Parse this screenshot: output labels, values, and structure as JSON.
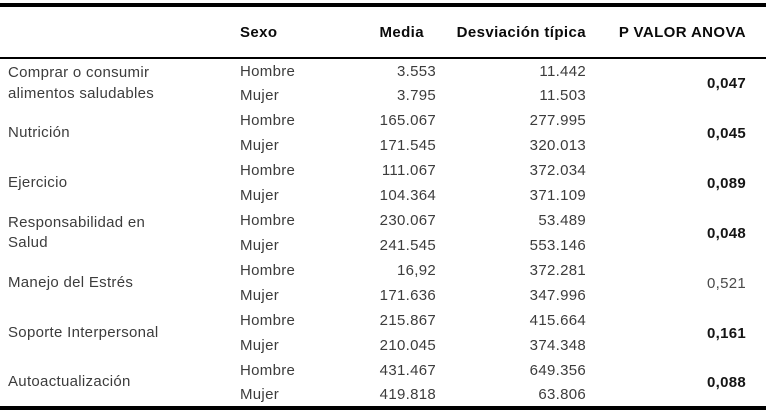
{
  "accent_colors": {
    "border": "#000000",
    "body_text": "#3c3c3c",
    "bold_text": "#151515"
  },
  "table": {
    "columns": {
      "variable": "",
      "sexo": "Sexo",
      "media": "Media",
      "desviacion": "Desviación típica",
      "p": "P VALOR ANOVA"
    },
    "groups": [
      {
        "variable": "Comprar o consumir alimentos saludables",
        "p": "0,047",
        "p_bold": true,
        "rows": [
          {
            "sexo": "Hombre",
            "media": "3.553",
            "desv": "11.442"
          },
          {
            "sexo": "Mujer",
            "media": "3.795",
            "desv": "11.503"
          }
        ]
      },
      {
        "variable": "Nutrición",
        "p": "0,045",
        "p_bold": true,
        "rows": [
          {
            "sexo": "Hombre",
            "media": "165.067",
            "desv": "277.995"
          },
          {
            "sexo": "Mujer",
            "media": "171.545",
            "desv": "320.013"
          }
        ]
      },
      {
        "variable": "Ejercicio",
        "p": "0,089",
        "p_bold": true,
        "rows": [
          {
            "sexo": "Hombre",
            "media": "111.067",
            "desv": "372.034"
          },
          {
            "sexo": "Mujer",
            "media": "104.364",
            "desv": "371.109"
          }
        ]
      },
      {
        "variable": "Responsabilidad en Salud",
        "p": "0,048",
        "p_bold": true,
        "rows": [
          {
            "sexo": "Hombre",
            "media": "230.067",
            "desv": "53.489"
          },
          {
            "sexo": "Mujer",
            "media": "241.545",
            "desv": "553.146"
          }
        ]
      },
      {
        "variable": "Manejo del Estrés",
        "p": "0,521",
        "p_bold": false,
        "rows": [
          {
            "sexo": "Hombre",
            "media": "16,92",
            "desv": "372.281"
          },
          {
            "sexo": "Mujer",
            "media": "171.636",
            "desv": "347.996"
          }
        ]
      },
      {
        "variable": "Soporte Interpersonal",
        "p": "0,161",
        "p_bold": true,
        "rows": [
          {
            "sexo": "Hombre",
            "media": "215.867",
            "desv": "415.664"
          },
          {
            "sexo": "Mujer",
            "media": "210.045",
            "desv": "374.348"
          }
        ]
      },
      {
        "variable": "Autoactualización",
        "p": "0,088",
        "p_bold": true,
        "rows": [
          {
            "sexo": "Hombre",
            "media": "431.467",
            "desv": "649.356"
          },
          {
            "sexo": "Mujer",
            "media": "419.818",
            "desv": "63.806"
          }
        ]
      }
    ]
  },
  "chart_data": {
    "type": "table",
    "title": "",
    "columns": [
      "",
      "Sexo",
      "Media",
      "Desviación típica",
      "P VALOR ANOVA"
    ],
    "rows": [
      [
        "Comprar o consumir alimentos saludables",
        "Hombre",
        "3.553",
        "11.442",
        "0,047"
      ],
      [
        "Comprar o consumir alimentos saludables",
        "Mujer",
        "3.795",
        "11.503",
        "0,047"
      ],
      [
        "Nutrición",
        "Hombre",
        "165.067",
        "277.995",
        "0,045"
      ],
      [
        "Nutrición",
        "Mujer",
        "171.545",
        "320.013",
        "0,045"
      ],
      [
        "Ejercicio",
        "Hombre",
        "111.067",
        "372.034",
        "0,089"
      ],
      [
        "Ejercicio",
        "Mujer",
        "104.364",
        "371.109",
        "0,089"
      ],
      [
        "Responsabilidad en Salud",
        "Hombre",
        "230.067",
        "53.489",
        "0,048"
      ],
      [
        "Responsabilidad en Salud",
        "Mujer",
        "241.545",
        "553.146",
        "0,048"
      ],
      [
        "Manejo del Estrés",
        "Hombre",
        "16,92",
        "372.281",
        "0,521"
      ],
      [
        "Manejo del Estrés",
        "Mujer",
        "171.636",
        "347.996",
        "0,521"
      ],
      [
        "Soporte Interpersonal",
        "Hombre",
        "215.867",
        "415.664",
        "0,161"
      ],
      [
        "Soporte Interpersonal",
        "Mujer",
        "210.045",
        "374.348",
        "0,161"
      ],
      [
        "Autoactualización",
        "Hombre",
        "431.467",
        "649.356",
        "0,088"
      ],
      [
        "Autoactualización",
        "Mujer",
        "419.818",
        "63.806",
        "0,088"
      ]
    ],
    "layout_hints": {
      "bold_p_values": [
        "0,047",
        "0,045",
        "0,089",
        "0,048",
        "0,161",
        "0,088"
      ],
      "regular_p_values": [
        "0,521"
      ],
      "top_rule": "thick",
      "header_rule": "thin",
      "bottom_rule": "thick"
    }
  }
}
